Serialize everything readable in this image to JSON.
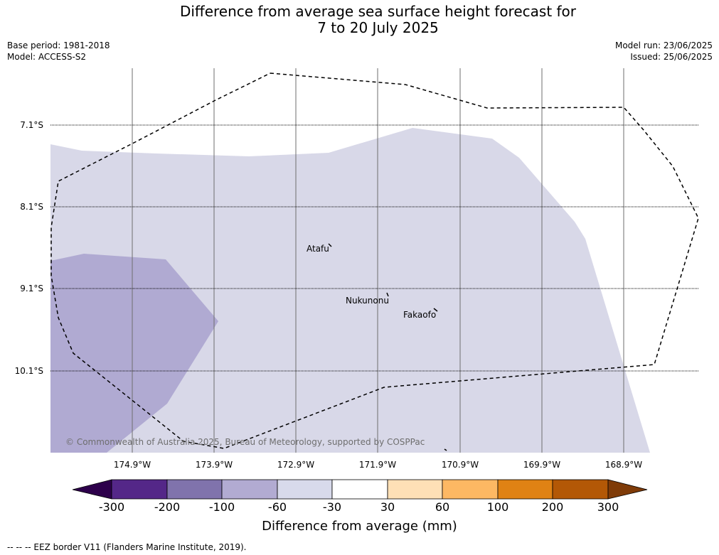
{
  "title_line1": "Difference from average sea surface height forecast for",
  "title_line2": "7 to 20 July 2025",
  "base_period": "Base period: 1981-2018",
  "model": "Model: ACCESS-S2",
  "model_run": "Model run: 23/06/2025",
  "issued": "Issued: 25/06/2025",
  "map": {
    "longitudes": [
      "174.9°W",
      "173.9°W",
      "172.9°W",
      "171.9°W",
      "170.9°W",
      "169.9°W",
      "168.9°W"
    ],
    "latitudes": [
      "7.1°S",
      "8.1°S",
      "9.1°S",
      "10.1°S"
    ],
    "places": [
      "Atafu",
      "Nukunonu",
      "Fakaofo"
    ],
    "copyright": "© Commonwealth of Australia 2025, Bureau of Meteorology, supported by COSPPac",
    "colors": {
      "band_-60_-30": "#d8d8e8",
      "band_-100_-60": "#b0aad2"
    }
  },
  "colorbar": {
    "title": "Difference from average (mm)",
    "ticks": [
      "-300",
      "-200",
      "-100",
      "-60",
      "-30",
      "30",
      "60",
      "100",
      "200",
      "300"
    ],
    "colors": {
      "below_-300": "#2d004b",
      "-300_-200": "#542788",
      "-200_-100": "#8073ac",
      "-100_-60": "#b2abd2",
      "-60_-30": "#d8daeb",
      "-30_30": "#ffffff",
      "30_60": "#fee0b6",
      "60_100": "#fdb863",
      "100_200": "#e08214",
      "200_300": "#b35806",
      "above_300": "#7f3b08"
    }
  },
  "eez_note": "--  --  -- EEZ border V11 (Flanders Marine Institute, 2019)."
}
